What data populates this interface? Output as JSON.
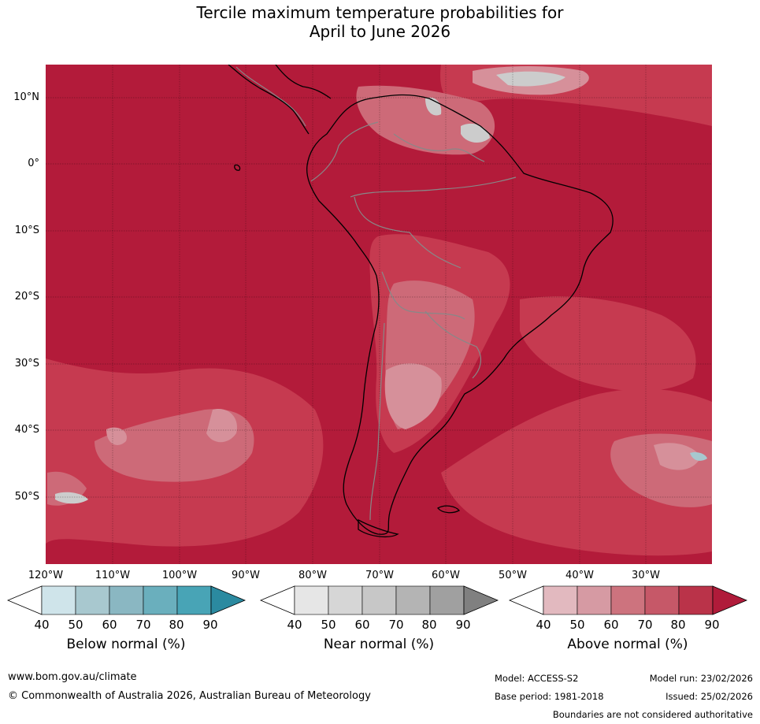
{
  "title": {
    "line1": "Tercile maximum temperature probabilities for",
    "line2": "April to June 2026"
  },
  "axes": {
    "lat_labels": [
      "10°N",
      "0°",
      "10°S",
      "20°S",
      "30°S",
      "40°S",
      "50°S"
    ],
    "lon_labels": [
      "120°W",
      "110°W",
      "100°W",
      "90°W",
      "80°W",
      "70°W",
      "60°W",
      "50°W",
      "40°W",
      "30°W"
    ]
  },
  "colors": {
    "above_90": "#b31b3a",
    "above_80": "#c63a50",
    "above_70": "#cd6a78",
    "above_60": "#d6909a",
    "above_50": "#e0b6bb",
    "near_60": "#cccccc",
    "near_70": "#bcbcbc",
    "below_50": "#a7c8cf",
    "coast": "#000000",
    "border": "#888888"
  },
  "legends": [
    {
      "title": "Below normal (%)",
      "ticks": [
        "40",
        "50",
        "60",
        "70",
        "80",
        "90"
      ],
      "colors": [
        "#ffffff",
        "#cfe4ea",
        "#a8c8cf",
        "#8ab7c2",
        "#6aafbd",
        "#48a4b6",
        "#2b8aa0"
      ]
    },
    {
      "title": "Near normal (%)",
      "ticks": [
        "40",
        "50",
        "60",
        "70",
        "80",
        "90"
      ],
      "colors": [
        "#ffffff",
        "#e6e6e6",
        "#d6d6d6",
        "#c7c7c7",
        "#b4b4b4",
        "#a0a0a0",
        "#808080"
      ]
    },
    {
      "title": "Above normal (%)",
      "ticks": [
        "40",
        "50",
        "60",
        "70",
        "80",
        "90"
      ],
      "colors": [
        "#ffffff",
        "#e2b9bf",
        "#d69aa3",
        "#cd737e",
        "#c65868",
        "#ba3349",
        "#b01b3a"
      ]
    }
  ],
  "footer": {
    "website": "www.bom.gov.au/climate",
    "copyright": "© Commonwealth of Australia 2026, Australian Bureau of Meteorology",
    "model": "Model: ACCESS-S2",
    "base_period": "Base period: 1981-2018",
    "model_run": "Model run: 23/02/2026",
    "issued": "Issued: 25/02/2026",
    "disclaimer": "Boundaries are not considered authoritative"
  }
}
